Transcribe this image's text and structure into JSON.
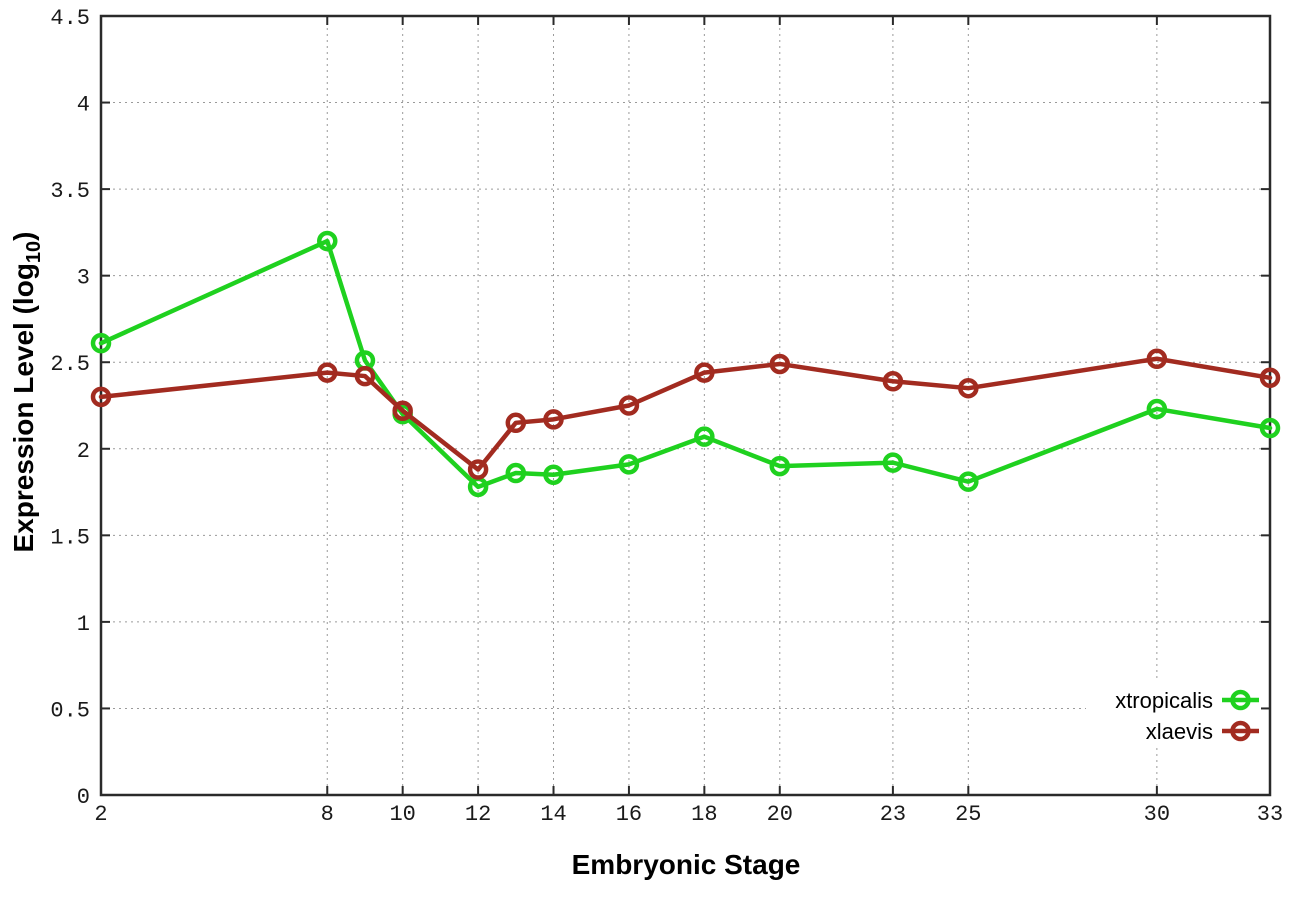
{
  "chart_data": {
    "type": "line",
    "title": "",
    "xlabel": "Embryonic Stage",
    "ylabel_main": "Expression Level (log",
    "ylabel_sub": "10",
    "ylabel_suffix": ")",
    "x": [
      2,
      8,
      9,
      10,
      12,
      13,
      14,
      16,
      18,
      20,
      23,
      25,
      30,
      33
    ],
    "series": [
      {
        "name": "xtropicalis",
        "color": "#1fd11f",
        "values": [
          2.61,
          3.2,
          2.51,
          2.2,
          1.78,
          1.86,
          1.85,
          1.91,
          2.07,
          1.9,
          1.92,
          1.81,
          2.23,
          2.12
        ]
      },
      {
        "name": "xlaevis",
        "color": "#a22b20",
        "values": [
          2.3,
          2.44,
          2.42,
          2.22,
          1.88,
          2.15,
          2.17,
          2.25,
          2.44,
          2.49,
          2.39,
          2.35,
          2.52,
          2.41
        ]
      }
    ],
    "xlim": [
      2,
      33
    ],
    "ylim": [
      0,
      4.5
    ],
    "xticks": [
      2,
      8,
      10,
      12,
      14,
      16,
      18,
      20,
      23,
      25,
      30,
      33
    ],
    "xtick_labels": [
      "2",
      "8",
      "10",
      "12",
      "14",
      "16",
      "18",
      "20",
      "23",
      "25",
      "30",
      "33"
    ],
    "yticks": [
      0,
      0.5,
      1,
      1.5,
      2,
      2.5,
      3,
      3.5,
      4,
      4.5
    ],
    "ytick_labels": [
      "0",
      "0.5",
      "1",
      "1.5",
      "2",
      "2.5",
      "3",
      "3.5",
      "4",
      "4.5"
    ],
    "grid": true,
    "legend_position": "bottom-right",
    "marker": "open-circle"
  },
  "colors": {
    "background": "#ffffff",
    "border": "#2a2a2a",
    "grid": "#9a9a9a",
    "tick_text": "#1a1a1a",
    "series_green": "#1fd11f",
    "series_red": "#a22b20"
  }
}
